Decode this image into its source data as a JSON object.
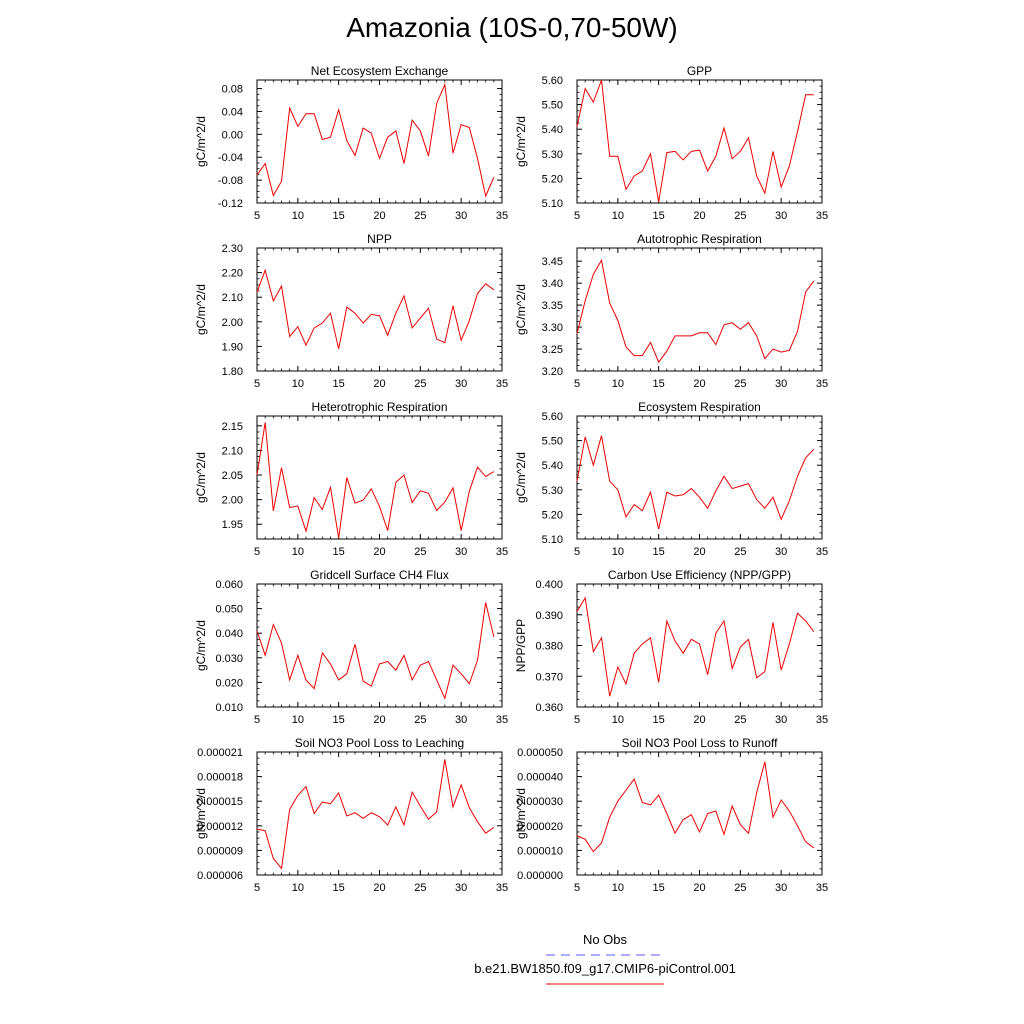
{
  "page": {
    "title": "Amazonia (10S-0,70-50W)"
  },
  "legend": {
    "obs_label": "No Obs",
    "obs_color": "#5a5aff",
    "model_label": "b.e21.BW1850.f09_g17.CMIP6-piControl.001",
    "model_color": "#ee0000"
  },
  "chart_data": [
    {
      "type": "line",
      "title": "Net Ecosystem Exchange",
      "ylabel": "gC/m^2/d",
      "xlim": [
        5,
        35
      ],
      "ylim": [
        -0.12,
        0.095
      ],
      "xticks": [
        5,
        10,
        15,
        20,
        25,
        30,
        35
      ],
      "yticks": [
        -0.12,
        -0.08,
        -0.04,
        0.0,
        0.04,
        0.08
      ],
      "ytick_labels": [
        "-0.12",
        "-0.08",
        "-0.04",
        "0.00",
        "0.04",
        "0.08"
      ],
      "x": [
        5,
        6,
        7,
        8,
        9,
        10,
        11,
        12,
        13,
        14,
        15,
        16,
        17,
        18,
        19,
        20,
        21,
        22,
        23,
        24,
        25,
        26,
        27,
        28,
        29,
        30,
        31,
        32,
        33,
        34
      ],
      "series": [
        {
          "values": [
            -0.071,
            -0.051,
            -0.107,
            -0.082,
            0.046,
            0.014,
            0.036,
            0.036,
            -0.009,
            -0.005,
            0.043,
            -0.011,
            -0.037,
            0.011,
            0.002,
            -0.042,
            -0.005,
            0.006,
            -0.051,
            0.025,
            0.006,
            -0.038,
            0.054,
            0.087,
            -0.033,
            0.017,
            0.012,
            -0.042,
            -0.108,
            -0.075
          ]
        }
      ]
    },
    {
      "type": "line",
      "title": "GPP",
      "ylabel": "gC/m^2/d",
      "xlim": [
        5,
        35
      ],
      "ylim": [
        5.1,
        5.6
      ],
      "xticks": [
        5,
        10,
        15,
        20,
        25,
        30,
        35
      ],
      "yticks": [
        5.1,
        5.2,
        5.3,
        5.4,
        5.5,
        5.6
      ],
      "ytick_labels": [
        "5.10",
        "5.20",
        "5.30",
        "5.40",
        "5.50",
        "5.60"
      ],
      "x": [
        5,
        6,
        7,
        8,
        9,
        10,
        11,
        12,
        13,
        14,
        15,
        16,
        17,
        18,
        19,
        20,
        21,
        22,
        23,
        24,
        25,
        26,
        27,
        28,
        29,
        30,
        31,
        32,
        33,
        34
      ],
      "series": [
        {
          "values": [
            5.41,
            5.565,
            5.51,
            5.6,
            5.29,
            5.29,
            5.155,
            5.21,
            5.23,
            5.3,
            5.105,
            5.305,
            5.31,
            5.275,
            5.31,
            5.315,
            5.23,
            5.29,
            5.405,
            5.28,
            5.31,
            5.365,
            5.21,
            5.14,
            5.31,
            5.165,
            5.25,
            5.39,
            5.54,
            5.54
          ]
        }
      ]
    },
    {
      "type": "line",
      "title": "NPP",
      "ylabel": "gC/m^2/d",
      "xlim": [
        5,
        35
      ],
      "ylim": [
        1.8,
        2.3
      ],
      "xticks": [
        5,
        10,
        15,
        20,
        25,
        30,
        35
      ],
      "yticks": [
        1.8,
        1.9,
        2.0,
        2.1,
        2.2,
        2.3
      ],
      "ytick_labels": [
        "1.80",
        "1.90",
        "2.00",
        "2.10",
        "2.20",
        "2.30"
      ],
      "x": [
        5,
        6,
        7,
        8,
        9,
        10,
        11,
        12,
        13,
        14,
        15,
        16,
        17,
        18,
        19,
        20,
        21,
        22,
        23,
        24,
        25,
        26,
        27,
        28,
        29,
        30,
        31,
        32,
        33,
        34
      ],
      "series": [
        {
          "values": [
            2.12,
            2.21,
            2.085,
            2.145,
            1.94,
            1.98,
            1.905,
            1.975,
            1.995,
            2.035,
            1.89,
            2.06,
            2.035,
            1.995,
            2.03,
            2.025,
            1.945,
            2.035,
            2.105,
            1.975,
            2.015,
            2.055,
            1.93,
            1.915,
            2.065,
            1.925,
            2.005,
            2.115,
            2.155,
            2.13
          ]
        }
      ]
    },
    {
      "type": "line",
      "title": "Autotrophic Respiration",
      "ylabel": "gC/m^2/d",
      "xlim": [
        5,
        35
      ],
      "ylim": [
        3.2,
        3.48
      ],
      "xticks": [
        5,
        10,
        15,
        20,
        25,
        30,
        35
      ],
      "yticks": [
        3.2,
        3.25,
        3.3,
        3.35,
        3.4,
        3.45
      ],
      "ytick_labels": [
        "3.20",
        "3.25",
        "3.30",
        "3.35",
        "3.40",
        "3.45"
      ],
      "x": [
        5,
        6,
        7,
        8,
        9,
        10,
        11,
        12,
        13,
        14,
        15,
        16,
        17,
        18,
        19,
        20,
        21,
        22,
        23,
        24,
        25,
        26,
        27,
        28,
        29,
        30,
        31,
        32,
        33,
        34
      ],
      "series": [
        {
          "values": [
            3.285,
            3.36,
            3.42,
            3.452,
            3.355,
            3.315,
            3.255,
            3.235,
            3.235,
            3.265,
            3.22,
            3.245,
            3.28,
            3.28,
            3.28,
            3.287,
            3.287,
            3.26,
            3.305,
            3.31,
            3.295,
            3.31,
            3.28,
            3.228,
            3.25,
            3.243,
            3.247,
            3.29,
            3.38,
            3.405
          ]
        }
      ]
    },
    {
      "type": "line",
      "title": "Heterotrophic Respiration",
      "ylabel": "gC/m^2/d",
      "xlim": [
        5,
        35
      ],
      "ylim": [
        1.92,
        2.17
      ],
      "xticks": [
        5,
        10,
        15,
        20,
        25,
        30,
        35
      ],
      "yticks": [
        1.95,
        2.0,
        2.05,
        2.1,
        2.15
      ],
      "ytick_labels": [
        "1.95",
        "2.00",
        "2.05",
        "2.10",
        "2.15"
      ],
      "x": [
        5,
        6,
        7,
        8,
        9,
        10,
        11,
        12,
        13,
        14,
        15,
        16,
        17,
        18,
        19,
        20,
        21,
        22,
        23,
        24,
        25,
        26,
        27,
        28,
        29,
        30,
        31,
        32,
        33,
        34
      ],
      "series": [
        {
          "values": [
            2.05,
            2.157,
            1.977,
            2.065,
            1.984,
            1.987,
            1.936,
            2.004,
            1.98,
            2.025,
            1.922,
            2.045,
            1.993,
            1.999,
            2.022,
            1.986,
            1.937,
            2.035,
            2.05,
            1.994,
            2.018,
            2.013,
            1.978,
            1.995,
            2.024,
            1.937,
            2.017,
            2.066,
            2.047,
            2.057
          ]
        }
      ]
    },
    {
      "type": "line",
      "title": "Ecosystem Respiration",
      "ylabel": "gC/m^2/d",
      "xlim": [
        5,
        35
      ],
      "ylim": [
        5.1,
        5.6
      ],
      "xticks": [
        5,
        10,
        15,
        20,
        25,
        30,
        35
      ],
      "yticks": [
        5.1,
        5.2,
        5.3,
        5.4,
        5.5,
        5.6
      ],
      "ytick_labels": [
        "5.10",
        "5.20",
        "5.30",
        "5.40",
        "5.50",
        "5.60"
      ],
      "x": [
        5,
        6,
        7,
        8,
        9,
        10,
        11,
        12,
        13,
        14,
        15,
        16,
        17,
        18,
        19,
        20,
        21,
        22,
        23,
        24,
        25,
        26,
        27,
        28,
        29,
        30,
        31,
        32,
        33,
        34
      ],
      "series": [
        {
          "values": [
            5.335,
            5.515,
            5.4,
            5.52,
            5.335,
            5.3,
            5.19,
            5.24,
            5.215,
            5.29,
            5.14,
            5.29,
            5.275,
            5.28,
            5.305,
            5.27,
            5.225,
            5.295,
            5.355,
            5.305,
            5.315,
            5.325,
            5.26,
            5.225,
            5.27,
            5.18,
            5.255,
            5.355,
            5.43,
            5.465
          ]
        }
      ]
    },
    {
      "type": "line",
      "title": "Gridcell Surface CH4 Flux",
      "ylabel": "gC/m^2/d",
      "xlim": [
        5,
        35
      ],
      "ylim": [
        0.01,
        0.06
      ],
      "xticks": [
        5,
        10,
        15,
        20,
        25,
        30,
        35
      ],
      "yticks": [
        0.01,
        0.02,
        0.03,
        0.04,
        0.05,
        0.06
      ],
      "ytick_labels": [
        "0.010",
        "0.020",
        "0.030",
        "0.040",
        "0.050",
        "0.060"
      ],
      "x": [
        5,
        6,
        7,
        8,
        9,
        10,
        11,
        12,
        13,
        14,
        15,
        16,
        17,
        18,
        19,
        20,
        21,
        22,
        23,
        24,
        25,
        26,
        27,
        28,
        29,
        30,
        31,
        32,
        33,
        34
      ],
      "series": [
        {
          "values": [
            0.041,
            0.031,
            0.0435,
            0.036,
            0.021,
            0.031,
            0.021,
            0.0175,
            0.032,
            0.0275,
            0.021,
            0.0235,
            0.0355,
            0.0205,
            0.0185,
            0.0275,
            0.0285,
            0.025,
            0.031,
            0.021,
            0.027,
            0.0285,
            0.021,
            0.0135,
            0.027,
            0.0235,
            0.0195,
            0.029,
            0.0525,
            0.0385
          ]
        }
      ]
    },
    {
      "type": "line",
      "title": "Carbon Use Efficiency (NPP/GPP)",
      "ylabel": "NPP/GPP",
      "xlim": [
        5,
        35
      ],
      "ylim": [
        0.36,
        0.4
      ],
      "xticks": [
        5,
        10,
        15,
        20,
        25,
        30,
        35
      ],
      "yticks": [
        0.36,
        0.37,
        0.38,
        0.39,
        0.4
      ],
      "ytick_labels": [
        "0.360",
        "0.370",
        "0.380",
        "0.390",
        "0.400"
      ],
      "x": [
        5,
        6,
        7,
        8,
        9,
        10,
        11,
        12,
        13,
        14,
        15,
        16,
        17,
        18,
        19,
        20,
        21,
        22,
        23,
        24,
        25,
        26,
        27,
        28,
        29,
        30,
        31,
        32,
        33,
        34
      ],
      "series": [
        {
          "values": [
            0.391,
            0.3955,
            0.378,
            0.3825,
            0.3635,
            0.373,
            0.3675,
            0.3775,
            0.3805,
            0.3825,
            0.368,
            0.388,
            0.3815,
            0.3775,
            0.382,
            0.3805,
            0.3705,
            0.384,
            0.388,
            0.3725,
            0.3795,
            0.382,
            0.3695,
            0.3715,
            0.3875,
            0.372,
            0.3805,
            0.3905,
            0.388,
            0.3845
          ]
        }
      ]
    },
    {
      "type": "line",
      "title": "Soil NO3 Pool Loss to Leaching",
      "ylabel": "gN/m^2/d",
      "xlim": [
        5,
        35
      ],
      "ylim": [
        6e-06,
        2.1e-05
      ],
      "xticks": [
        5,
        10,
        15,
        20,
        25,
        30,
        35
      ],
      "yticks": [
        6e-06,
        9e-06,
        1.2e-05,
        1.5e-05,
        1.8e-05,
        2.1e-05
      ],
      "ytick_labels": [
        "0.000006",
        "0.000009",
        "0.000012",
        "0.000015",
        "0.000018",
        "0.000021"
      ],
      "x": [
        5,
        6,
        7,
        8,
        9,
        10,
        11,
        12,
        13,
        14,
        15,
        16,
        17,
        18,
        19,
        20,
        21,
        22,
        23,
        24,
        25,
        26,
        27,
        28,
        29,
        30,
        31,
        32,
        33,
        34
      ],
      "series": [
        {
          "values": [
            1.16e-05,
            1.14e-05,
            8e-06,
            6.8e-06,
            1.4e-05,
            1.57e-05,
            1.68e-05,
            1.35e-05,
            1.49e-05,
            1.47e-05,
            1.6e-05,
            1.32e-05,
            1.36e-05,
            1.29e-05,
            1.36e-05,
            1.31e-05,
            1.21e-05,
            1.43e-05,
            1.21e-05,
            1.61e-05,
            1.44e-05,
            1.28e-05,
            1.37e-05,
            2.01e-05,
            1.43e-05,
            1.7e-05,
            1.42e-05,
            1.25e-05,
            1.11e-05,
            1.18e-05
          ]
        }
      ]
    },
    {
      "type": "line",
      "title": "Soil NO3 Pool Loss to Runoff",
      "ylabel": "gN/m^2/d",
      "xlim": [
        5,
        35
      ],
      "ylim": [
        0.0,
        5e-05
      ],
      "xticks": [
        5,
        10,
        15,
        20,
        25,
        30,
        35
      ],
      "yticks": [
        0.0,
        1e-05,
        2e-05,
        3e-05,
        4e-05,
        5e-05
      ],
      "ytick_labels": [
        "0.000000",
        "0.000010",
        "0.000020",
        "0.000030",
        "0.000040",
        "0.000050"
      ],
      "x": [
        5,
        6,
        7,
        8,
        9,
        10,
        11,
        12,
        13,
        14,
        15,
        16,
        17,
        18,
        19,
        20,
        21,
        22,
        23,
        24,
        25,
        26,
        27,
        28,
        29,
        30,
        31,
        32,
        33,
        34
      ],
      "series": [
        {
          "values": [
            1.6e-05,
            1.45e-05,
            9.5e-06,
            1.3e-05,
            2.35e-05,
            3e-05,
            3.45e-05,
            3.9e-05,
            2.95e-05,
            2.85e-05,
            3.25e-05,
            2.5e-05,
            1.7e-05,
            2.25e-05,
            2.45e-05,
            1.75e-05,
            2.5e-05,
            2.6e-05,
            1.65e-05,
            2.8e-05,
            2.05e-05,
            1.7e-05,
            3.35e-05,
            4.6e-05,
            2.35e-05,
            3.05e-05,
            2.6e-05,
            2e-05,
            1.35e-05,
            1.1e-05
          ]
        }
      ]
    }
  ]
}
